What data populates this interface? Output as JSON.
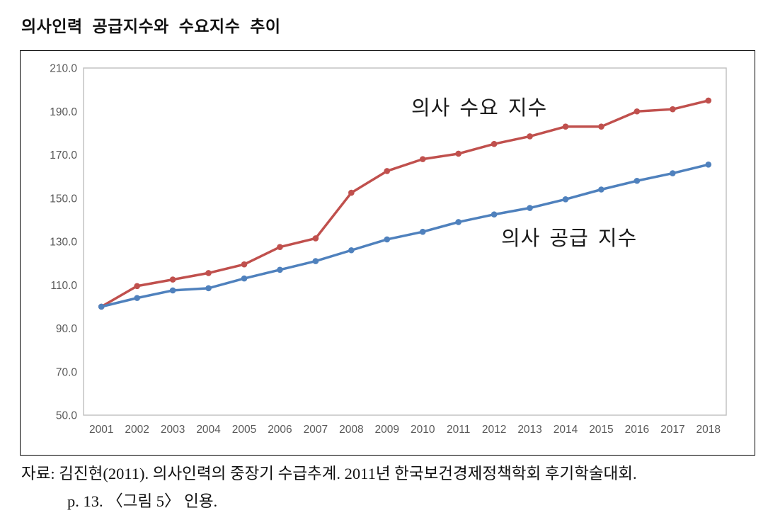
{
  "page": {
    "title": "의사인력 공급지수와 수요지수 추이",
    "source_line1": "자료: 김진현(2011). 의사인력의 중장기 수급추계. 2011년 한국보건경제정책학회 후기학술대회.",
    "source_line2": "p. 13. 〈그림 5〉 인용."
  },
  "chart_data": {
    "type": "line",
    "title": "의사인력 공급지수와 수요지수 추이",
    "xlabel": "",
    "ylabel": "",
    "categories": [
      "2001",
      "2002",
      "2003",
      "2004",
      "2005",
      "2006",
      "2007",
      "2008",
      "2009",
      "2010",
      "2011",
      "2012",
      "2013",
      "2014",
      "2015",
      "2016",
      "2017",
      "2018"
    ],
    "series": [
      {
        "name": "의사 수요 지수",
        "color": "#C0504D",
        "values": [
          100,
          109.5,
          112.5,
          115.5,
          119.5,
          127.5,
          131.5,
          152.5,
          162.5,
          168,
          170.5,
          175,
          178.5,
          183,
          183,
          190,
          191,
          195
        ]
      },
      {
        "name": "의사 공급 지수",
        "color": "#4F81BD",
        "values": [
          100,
          104,
          107.5,
          108.5,
          113,
          117,
          121,
          126,
          131,
          134.5,
          139,
          142.5,
          145.5,
          149.5,
          154,
          158,
          161.5,
          165.5
        ]
      }
    ],
    "ylim": [
      50,
      210
    ],
    "ytick_step": 20,
    "ytick_format": "one-decimal",
    "grid": false,
    "legend_position": "inline-text-labels",
    "axis_color": "#bfbfbf",
    "tick_label_color": "#595959"
  }
}
